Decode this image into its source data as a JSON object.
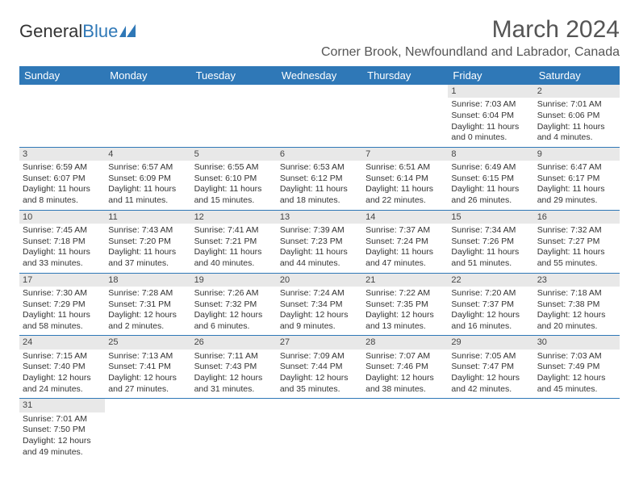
{
  "logo": {
    "text1": "General",
    "text2": "Blue"
  },
  "title": "March 2024",
  "location": "Corner Brook, Newfoundland and Labrador, Canada",
  "weekdays": [
    "Sunday",
    "Monday",
    "Tuesday",
    "Wednesday",
    "Thursday",
    "Friday",
    "Saturday"
  ],
  "colors": {
    "header_bg": "#2f78b7",
    "daynum_bg": "#e8e8e8",
    "row_border": "#2f78b7"
  },
  "weeks": [
    [
      {
        "n": "",
        "sr": "",
        "ss": "",
        "dl": ""
      },
      {
        "n": "",
        "sr": "",
        "ss": "",
        "dl": ""
      },
      {
        "n": "",
        "sr": "",
        "ss": "",
        "dl": ""
      },
      {
        "n": "",
        "sr": "",
        "ss": "",
        "dl": ""
      },
      {
        "n": "",
        "sr": "",
        "ss": "",
        "dl": ""
      },
      {
        "n": "1",
        "sr": "Sunrise: 7:03 AM",
        "ss": "Sunset: 6:04 PM",
        "dl": "Daylight: 11 hours and 0 minutes."
      },
      {
        "n": "2",
        "sr": "Sunrise: 7:01 AM",
        "ss": "Sunset: 6:06 PM",
        "dl": "Daylight: 11 hours and 4 minutes."
      }
    ],
    [
      {
        "n": "3",
        "sr": "Sunrise: 6:59 AM",
        "ss": "Sunset: 6:07 PM",
        "dl": "Daylight: 11 hours and 8 minutes."
      },
      {
        "n": "4",
        "sr": "Sunrise: 6:57 AM",
        "ss": "Sunset: 6:09 PM",
        "dl": "Daylight: 11 hours and 11 minutes."
      },
      {
        "n": "5",
        "sr": "Sunrise: 6:55 AM",
        "ss": "Sunset: 6:10 PM",
        "dl": "Daylight: 11 hours and 15 minutes."
      },
      {
        "n": "6",
        "sr": "Sunrise: 6:53 AM",
        "ss": "Sunset: 6:12 PM",
        "dl": "Daylight: 11 hours and 18 minutes."
      },
      {
        "n": "7",
        "sr": "Sunrise: 6:51 AM",
        "ss": "Sunset: 6:14 PM",
        "dl": "Daylight: 11 hours and 22 minutes."
      },
      {
        "n": "8",
        "sr": "Sunrise: 6:49 AM",
        "ss": "Sunset: 6:15 PM",
        "dl": "Daylight: 11 hours and 26 minutes."
      },
      {
        "n": "9",
        "sr": "Sunrise: 6:47 AM",
        "ss": "Sunset: 6:17 PM",
        "dl": "Daylight: 11 hours and 29 minutes."
      }
    ],
    [
      {
        "n": "10",
        "sr": "Sunrise: 7:45 AM",
        "ss": "Sunset: 7:18 PM",
        "dl": "Daylight: 11 hours and 33 minutes."
      },
      {
        "n": "11",
        "sr": "Sunrise: 7:43 AM",
        "ss": "Sunset: 7:20 PM",
        "dl": "Daylight: 11 hours and 37 minutes."
      },
      {
        "n": "12",
        "sr": "Sunrise: 7:41 AM",
        "ss": "Sunset: 7:21 PM",
        "dl": "Daylight: 11 hours and 40 minutes."
      },
      {
        "n": "13",
        "sr": "Sunrise: 7:39 AM",
        "ss": "Sunset: 7:23 PM",
        "dl": "Daylight: 11 hours and 44 minutes."
      },
      {
        "n": "14",
        "sr": "Sunrise: 7:37 AM",
        "ss": "Sunset: 7:24 PM",
        "dl": "Daylight: 11 hours and 47 minutes."
      },
      {
        "n": "15",
        "sr": "Sunrise: 7:34 AM",
        "ss": "Sunset: 7:26 PM",
        "dl": "Daylight: 11 hours and 51 minutes."
      },
      {
        "n": "16",
        "sr": "Sunrise: 7:32 AM",
        "ss": "Sunset: 7:27 PM",
        "dl": "Daylight: 11 hours and 55 minutes."
      }
    ],
    [
      {
        "n": "17",
        "sr": "Sunrise: 7:30 AM",
        "ss": "Sunset: 7:29 PM",
        "dl": "Daylight: 11 hours and 58 minutes."
      },
      {
        "n": "18",
        "sr": "Sunrise: 7:28 AM",
        "ss": "Sunset: 7:31 PM",
        "dl": "Daylight: 12 hours and 2 minutes."
      },
      {
        "n": "19",
        "sr": "Sunrise: 7:26 AM",
        "ss": "Sunset: 7:32 PM",
        "dl": "Daylight: 12 hours and 6 minutes."
      },
      {
        "n": "20",
        "sr": "Sunrise: 7:24 AM",
        "ss": "Sunset: 7:34 PM",
        "dl": "Daylight: 12 hours and 9 minutes."
      },
      {
        "n": "21",
        "sr": "Sunrise: 7:22 AM",
        "ss": "Sunset: 7:35 PM",
        "dl": "Daylight: 12 hours and 13 minutes."
      },
      {
        "n": "22",
        "sr": "Sunrise: 7:20 AM",
        "ss": "Sunset: 7:37 PM",
        "dl": "Daylight: 12 hours and 16 minutes."
      },
      {
        "n": "23",
        "sr": "Sunrise: 7:18 AM",
        "ss": "Sunset: 7:38 PM",
        "dl": "Daylight: 12 hours and 20 minutes."
      }
    ],
    [
      {
        "n": "24",
        "sr": "Sunrise: 7:15 AM",
        "ss": "Sunset: 7:40 PM",
        "dl": "Daylight: 12 hours and 24 minutes."
      },
      {
        "n": "25",
        "sr": "Sunrise: 7:13 AM",
        "ss": "Sunset: 7:41 PM",
        "dl": "Daylight: 12 hours and 27 minutes."
      },
      {
        "n": "26",
        "sr": "Sunrise: 7:11 AM",
        "ss": "Sunset: 7:43 PM",
        "dl": "Daylight: 12 hours and 31 minutes."
      },
      {
        "n": "27",
        "sr": "Sunrise: 7:09 AM",
        "ss": "Sunset: 7:44 PM",
        "dl": "Daylight: 12 hours and 35 minutes."
      },
      {
        "n": "28",
        "sr": "Sunrise: 7:07 AM",
        "ss": "Sunset: 7:46 PM",
        "dl": "Daylight: 12 hours and 38 minutes."
      },
      {
        "n": "29",
        "sr": "Sunrise: 7:05 AM",
        "ss": "Sunset: 7:47 PM",
        "dl": "Daylight: 12 hours and 42 minutes."
      },
      {
        "n": "30",
        "sr": "Sunrise: 7:03 AM",
        "ss": "Sunset: 7:49 PM",
        "dl": "Daylight: 12 hours and 45 minutes."
      }
    ],
    [
      {
        "n": "31",
        "sr": "Sunrise: 7:01 AM",
        "ss": "Sunset: 7:50 PM",
        "dl": "Daylight: 12 hours and 49 minutes."
      },
      {
        "n": "",
        "sr": "",
        "ss": "",
        "dl": ""
      },
      {
        "n": "",
        "sr": "",
        "ss": "",
        "dl": ""
      },
      {
        "n": "",
        "sr": "",
        "ss": "",
        "dl": ""
      },
      {
        "n": "",
        "sr": "",
        "ss": "",
        "dl": ""
      },
      {
        "n": "",
        "sr": "",
        "ss": "",
        "dl": ""
      },
      {
        "n": "",
        "sr": "",
        "ss": "",
        "dl": ""
      }
    ]
  ]
}
